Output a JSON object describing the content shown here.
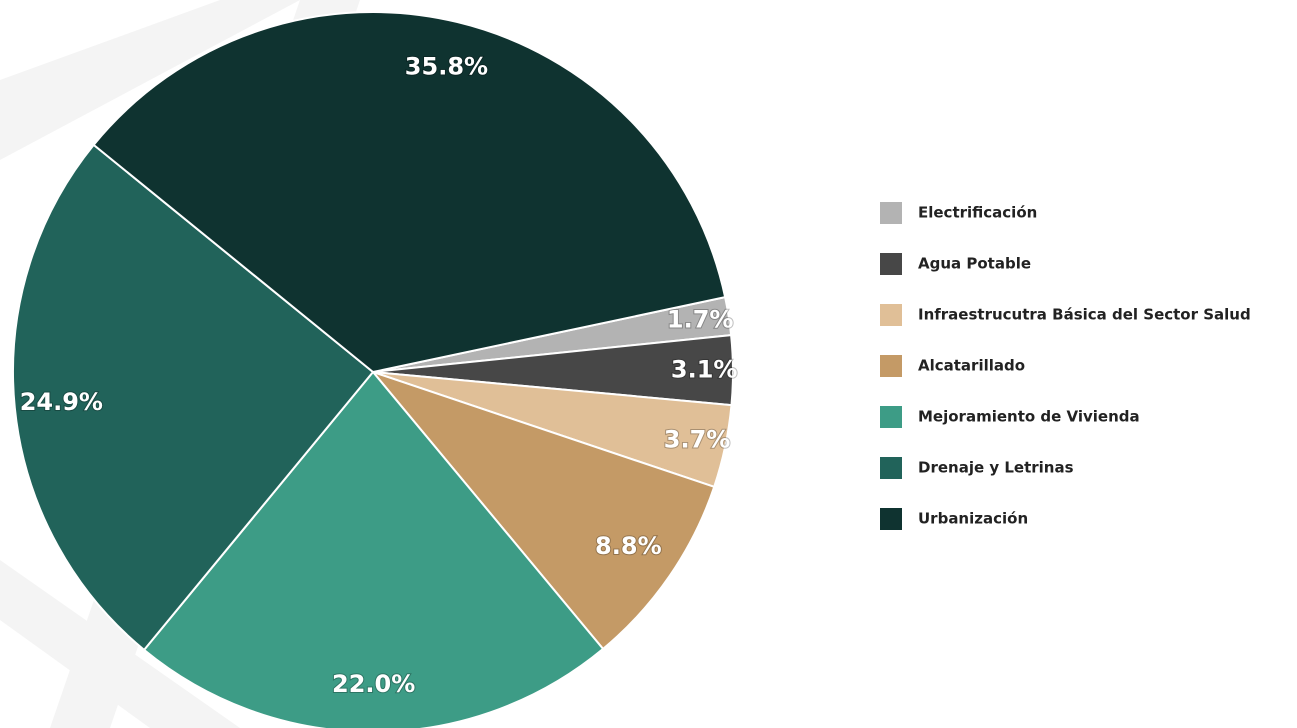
{
  "chart_data": {
    "type": "pie",
    "categories": [
      "Electrificación",
      "Agua Potable",
      "Infraestrucutra Básica del Sector Salud",
      "Alcatarillado",
      "Mejoramiento de Vivienda",
      "Drenaje y Letrinas",
      "Urbanización"
    ],
    "values": [
      1.7,
      3.1,
      3.7,
      8.8,
      22.0,
      24.9,
      35.8
    ],
    "value_labels": [
      "1.7%",
      "3.1%",
      "3.7%",
      "8.8%",
      "22.0%",
      "24.9%",
      "35.8%"
    ],
    "colors": [
      "#b3b3b3",
      "#474747",
      "#e0bf97",
      "#c49a66",
      "#3d9c86",
      "#21635a",
      "#0f3330"
    ],
    "legend": "right"
  }
}
